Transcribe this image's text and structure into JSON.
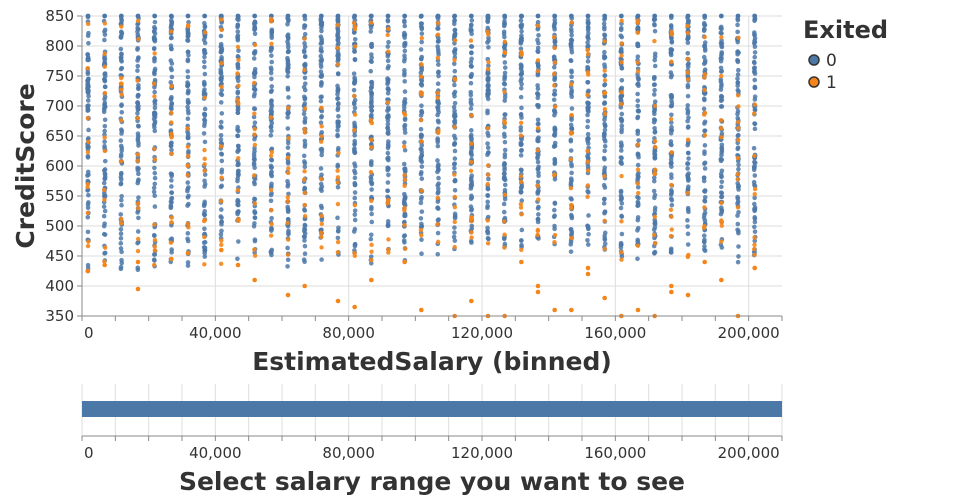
{
  "chart_data": [
    {
      "type": "scatter",
      "title": "",
      "xlabel": "EstimatedSalary (binned)",
      "ylabel": "CreditScore",
      "xlim": [
        0,
        210000
      ],
      "ylim": [
        350,
        850
      ],
      "x_ticks": [
        0,
        40000,
        80000,
        120000,
        160000,
        200000
      ],
      "x_tick_labels": [
        "0",
        "40,000",
        "80,000",
        "120,000",
        "160,000",
        "200,000"
      ],
      "y_ticks": [
        350,
        400,
        450,
        500,
        550,
        600,
        650,
        700,
        750,
        800,
        850
      ],
      "y_tick_labels": [
        "350",
        "400",
        "450",
        "500",
        "550",
        "600",
        "650",
        "700",
        "750",
        "800",
        "850"
      ],
      "grid": true,
      "bin_step": 5000,
      "x_bins": [
        0,
        5000,
        10000,
        15000,
        20000,
        25000,
        30000,
        35000,
        40000,
        45000,
        50000,
        55000,
        60000,
        65000,
        70000,
        75000,
        80000,
        85000,
        90000,
        95000,
        100000,
        105000,
        110000,
        115000,
        120000,
        125000,
        130000,
        135000,
        140000,
        145000,
        150000,
        155000,
        160000,
        165000,
        170000,
        175000,
        180000,
        185000,
        190000,
        195000,
        200000
      ],
      "legend": {
        "title": "Exited",
        "position": "top-right",
        "entries": [
          {
            "label": "0",
            "color": "#4c78a8"
          },
          {
            "label": "1",
            "color": "#f58518"
          }
        ]
      },
      "series": [
        {
          "name": "0",
          "color": "#4c78a8",
          "score_range_by_bin": [
            [
              415,
              850
            ],
            [
              420,
              850
            ],
            [
              415,
              850
            ],
            [
              420,
              850
            ],
            [
              430,
              850
            ],
            [
              425,
              850
            ],
            [
              430,
              850
            ],
            [
              430,
              850
            ],
            [
              430,
              850
            ],
            [
              440,
              850
            ],
            [
              430,
              850
            ],
            [
              440,
              850
            ],
            [
              430,
              850
            ],
            [
              440,
              850
            ],
            [
              435,
              850
            ],
            [
              430,
              850
            ],
            [
              440,
              850
            ],
            [
              430,
              850
            ],
            [
              440,
              850
            ],
            [
              440,
              850
            ],
            [
              450,
              850
            ],
            [
              450,
              850
            ],
            [
              440,
              850
            ],
            [
              460,
              850
            ],
            [
              470,
              850
            ],
            [
              460,
              850
            ],
            [
              460,
              850
            ],
            [
              455,
              850
            ],
            [
              460,
              850
            ],
            [
              450,
              850
            ],
            [
              460,
              850
            ],
            [
              450,
              850
            ],
            [
              440,
              850
            ],
            [
              440,
              850
            ],
            [
              450,
              850
            ],
            [
              450,
              850
            ],
            [
              440,
              850
            ],
            [
              450,
              850
            ],
            [
              455,
              850
            ],
            [
              425,
              850
            ],
            [
              430,
              850
            ]
          ]
        },
        {
          "name": "1",
          "color": "#f58518",
          "low_points": [
            [
              0,
              425
            ],
            [
              5000,
              435
            ],
            [
              15000,
              395
            ],
            [
              15000,
              440
            ],
            [
              25000,
              445
            ],
            [
              30000,
              455
            ],
            [
              40000,
              460
            ],
            [
              45000,
              435
            ],
            [
              50000,
              410
            ],
            [
              60000,
              385
            ],
            [
              65000,
              400
            ],
            [
              75000,
              375
            ],
            [
              80000,
              365
            ],
            [
              85000,
              410
            ],
            [
              95000,
              440
            ],
            [
              100000,
              360
            ],
            [
              110000,
              350
            ],
            [
              115000,
              375
            ],
            [
              120000,
              350
            ],
            [
              125000,
              350
            ],
            [
              130000,
              440
            ],
            [
              135000,
              390
            ],
            [
              135000,
              400
            ],
            [
              140000,
              360
            ],
            [
              145000,
              360
            ],
            [
              150000,
              420
            ],
            [
              150000,
              430
            ],
            [
              155000,
              380
            ],
            [
              160000,
              350
            ],
            [
              165000,
              360
            ],
            [
              170000,
              350
            ],
            [
              175000,
              400
            ],
            [
              175000,
              390
            ],
            [
              180000,
              385
            ],
            [
              185000,
              440
            ],
            [
              190000,
              410
            ],
            [
              195000,
              350
            ],
            [
              200000,
              430
            ]
          ]
        }
      ]
    },
    {
      "type": "bar",
      "title": "",
      "xlabel": "Select salary range you want to see",
      "xlim": [
        0,
        210000
      ],
      "x_ticks": [
        0,
        40000,
        80000,
        120000,
        160000,
        200000
      ],
      "x_tick_labels": [
        "0",
        "40,000",
        "80,000",
        "120,000",
        "160,000",
        "200,000"
      ],
      "range": [
        0,
        210000
      ],
      "color": "#4c78a8"
    }
  ]
}
